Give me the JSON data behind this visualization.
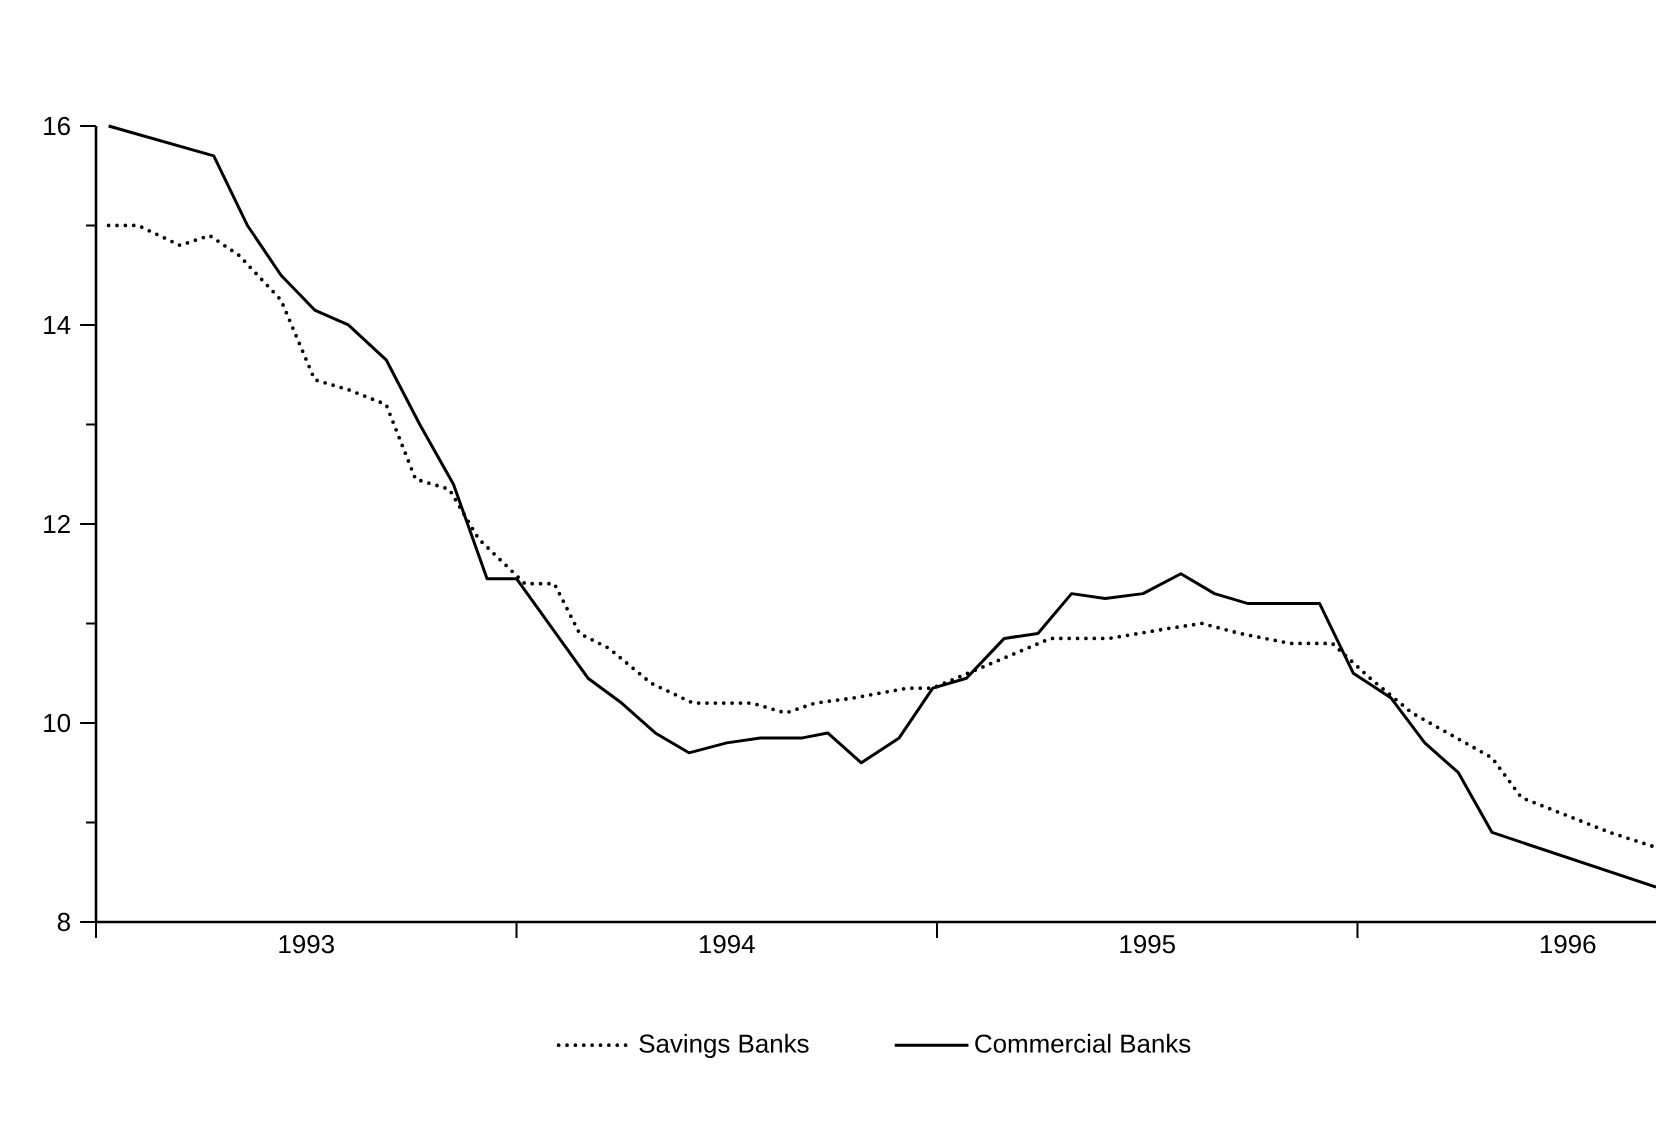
{
  "chart_data": {
    "type": "line",
    "xlim": [
      1993,
      1996.71
    ],
    "ylim": [
      8,
      16
    ],
    "xticks": [
      {
        "value": 1993,
        "label": null
      },
      {
        "value": 1993.5,
        "label": "1993"
      },
      {
        "value": 1994,
        "label": null
      },
      {
        "value": 1994.5,
        "label": "1994"
      },
      {
        "value": 1995,
        "label": null
      },
      {
        "value": 1995.5,
        "label": "1995"
      },
      {
        "value": 1996,
        "label": null
      },
      {
        "value": 1996.5,
        "label": "1996"
      }
    ],
    "yticks": [
      8,
      {
        "value": 9,
        "label": null
      },
      10,
      {
        "value": 11,
        "label": null
      },
      12,
      {
        "value": 13,
        "label": null
      },
      14,
      {
        "value": 15,
        "label": null
      },
      16
    ],
    "grid": false,
    "legend": "bottom",
    "series": [
      {
        "name": "Savings Banks",
        "color": "#000000",
        "line_style": "dotted",
        "x": [
          1993.03,
          1993.1,
          1993.2,
          1993.27,
          1993.34,
          1993.44,
          1993.52,
          1993.6,
          1993.69,
          1993.76,
          1993.84,
          1993.91,
          1994.02,
          1994.09,
          1994.15,
          1994.22,
          1994.32,
          1994.42,
          1994.56,
          1994.64,
          1994.71,
          1994.8,
          1994.93,
          1994.99,
          1995.27,
          1995.41,
          1995.55,
          1995.63,
          1995.72,
          1995.84,
          1995.94,
          1996.03,
          1996.13,
          1996.32,
          1996.39,
          1996.6,
          1996.71
        ],
        "values": [
          15.0,
          15.0,
          14.8,
          14.9,
          14.7,
          14.25,
          13.45,
          13.35,
          13.2,
          12.45,
          12.35,
          11.85,
          11.4,
          11.4,
          10.9,
          10.75,
          10.4,
          10.2,
          10.2,
          10.1,
          10.2,
          10.25,
          10.35,
          10.35,
          10.85,
          10.85,
          10.95,
          11.0,
          10.9,
          10.8,
          10.8,
          10.45,
          10.1,
          9.65,
          9.25,
          8.9,
          8.75
        ]
      },
      {
        "name": "Commercial Banks",
        "color": "#000000",
        "line_style": "solid",
        "x": [
          1993.03,
          1993.28,
          1993.36,
          1993.44,
          1993.52,
          1993.6,
          1993.69,
          1993.77,
          1993.85,
          1993.93,
          1994.0,
          1994.17,
          1994.25,
          1994.33,
          1994.41,
          1994.5,
          1994.58,
          1994.68,
          1994.74,
          1994.82,
          1994.91,
          1994.99,
          1995.07,
          1995.16,
          1995.24,
          1995.32,
          1995.4,
          1995.49,
          1995.58,
          1995.66,
          1995.74,
          1995.91,
          1995.99,
          1996.08,
          1996.16,
          1996.24,
          1996.32,
          1996.71
        ],
        "values": [
          16.0,
          15.7,
          15.0,
          14.5,
          14.15,
          14.0,
          13.65,
          13.0,
          12.4,
          11.45,
          11.45,
          10.45,
          10.2,
          9.9,
          9.7,
          9.8,
          9.85,
          9.85,
          9.9,
          9.6,
          9.85,
          10.35,
          10.45,
          10.85,
          10.9,
          11.3,
          11.25,
          11.3,
          11.5,
          11.3,
          11.2,
          11.2,
          10.5,
          10.25,
          9.8,
          9.5,
          8.9,
          8.35
        ]
      }
    ]
  }
}
